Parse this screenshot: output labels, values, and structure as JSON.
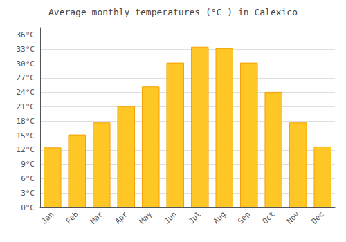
{
  "chart_data": {
    "type": "bar",
    "title": "Average monthly temperatures (°C ) in Calexico",
    "categories": [
      "Jan",
      "Feb",
      "Mar",
      "Apr",
      "May",
      "Jun",
      "Jul",
      "Aug",
      "Sep",
      "Oct",
      "Nov",
      "Dec"
    ],
    "values": [
      12.5,
      15.2,
      17.7,
      21.1,
      25.2,
      30.2,
      33.5,
      33.2,
      30.2,
      24.1,
      17.7,
      12.7
    ],
    "color": "#FFC726",
    "ylim": [
      0,
      37.5
    ],
    "yticks": [
      {
        "value": 0,
        "label": "0°C"
      },
      {
        "value": 3,
        "label": "3°C"
      },
      {
        "value": 6,
        "label": "6°C"
      },
      {
        "value": 9,
        "label": "9°C"
      },
      {
        "value": 12,
        "label": "12°C"
      },
      {
        "value": 15,
        "label": "15°C"
      },
      {
        "value": 18,
        "label": "18°C"
      },
      {
        "value": 21,
        "label": "21°C"
      },
      {
        "value": 24,
        "label": "24°C"
      },
      {
        "value": 27,
        "label": "27°C"
      },
      {
        "value": 30,
        "label": "30°C"
      },
      {
        "value": 33,
        "label": "33°C"
      },
      {
        "value": 36,
        "label": "36°C"
      }
    ],
    "grid": true
  }
}
